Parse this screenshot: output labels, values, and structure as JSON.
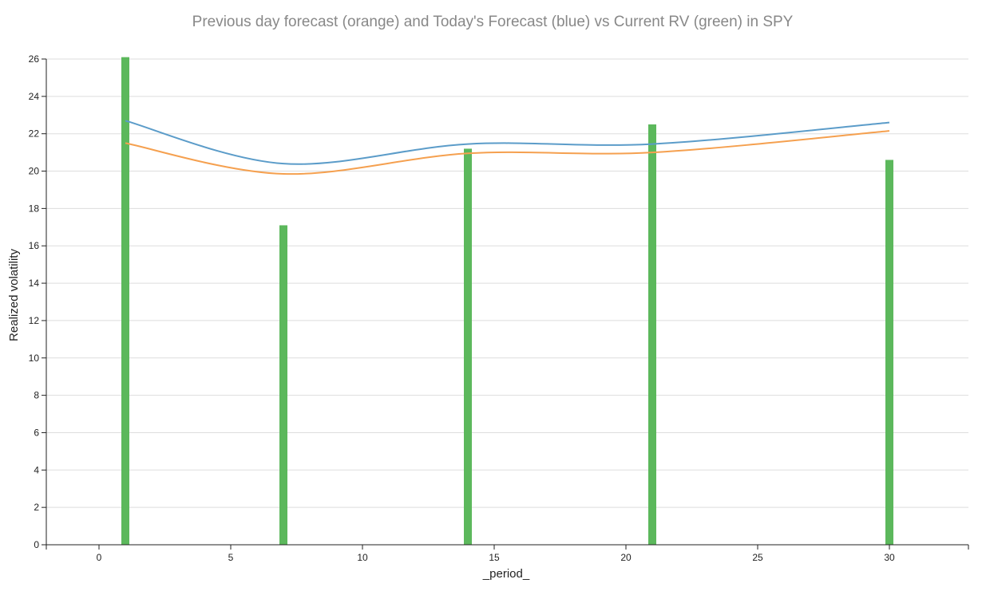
{
  "chart_data": {
    "type": "line",
    "title": "Previous day forecast (orange) and Today's Forecast (blue) vs Current RV (green) in SPY",
    "xlabel": "_period_",
    "ylabel": "Realized volatility",
    "xlim": [
      -2,
      33
    ],
    "ylim": [
      0,
      26
    ],
    "x_ticks": [
      0,
      5,
      10,
      15,
      20,
      25,
      30
    ],
    "y_ticks": [
      0,
      2,
      4,
      6,
      8,
      10,
      12,
      14,
      16,
      18,
      20,
      22,
      24,
      26
    ],
    "grid": "horizontal",
    "series": [
      {
        "mark": "line",
        "color": "#5b9cc9",
        "x": [
          1,
          7,
          14,
          21,
          30
        ],
        "values": [
          22.7,
          20.4,
          21.45,
          21.45,
          22.6
        ]
      },
      {
        "mark": "line",
        "color": "#f5a04f",
        "x": [
          1,
          7,
          14,
          21,
          30
        ],
        "values": [
          21.5,
          19.85,
          20.95,
          21.0,
          22.15
        ]
      },
      {
        "mark": "bar",
        "color": "#5cb85c",
        "x": [
          1,
          7,
          14,
          21,
          30
        ],
        "values": [
          26.1,
          17.1,
          21.2,
          22.5,
          20.6
        ]
      }
    ]
  }
}
